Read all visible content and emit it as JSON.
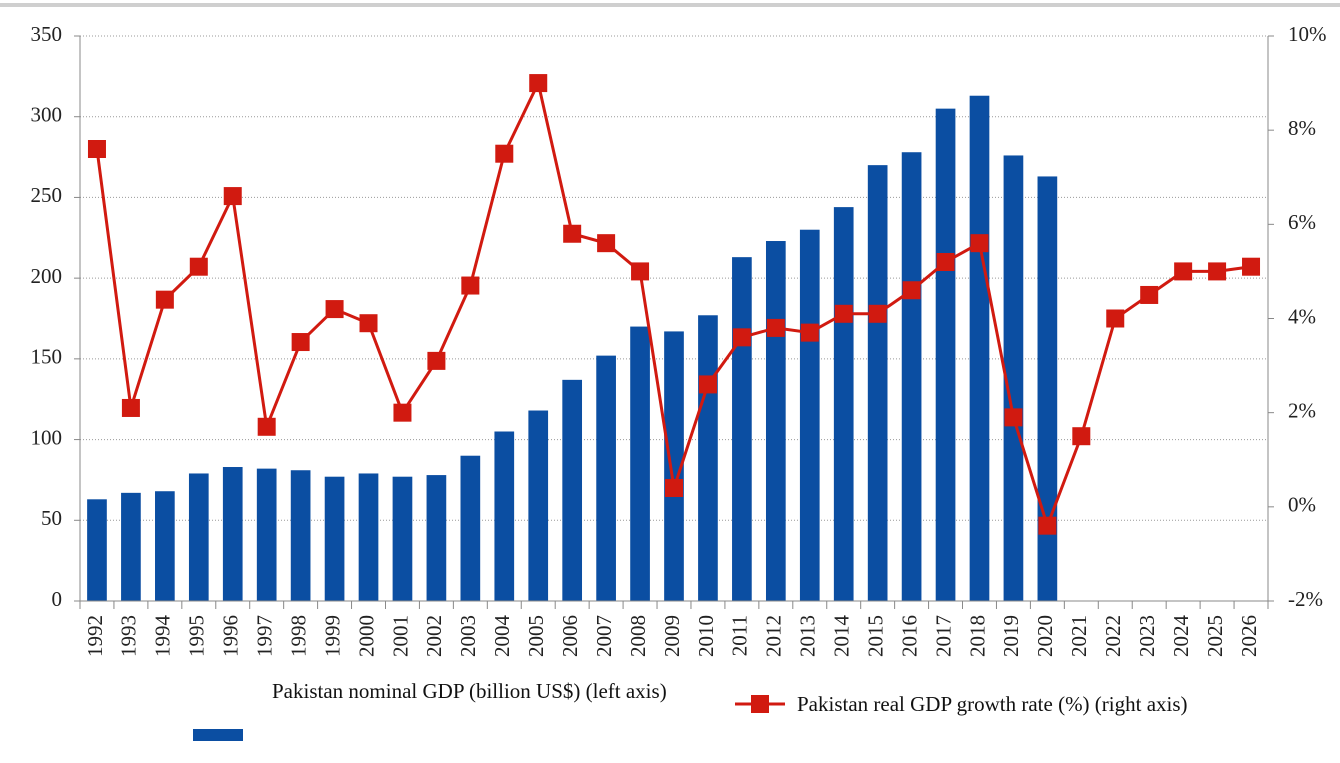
{
  "chart_data": {
    "type": "bar",
    "categories": [
      "1992",
      "1993",
      "1994",
      "1995",
      "1996",
      "1997",
      "1998",
      "1999",
      "2000",
      "2001",
      "2002",
      "2003",
      "2004",
      "2005",
      "2006",
      "2007",
      "2008",
      "2009",
      "2010",
      "2011",
      "2012",
      "2013",
      "2014",
      "2015",
      "2016",
      "2017",
      "2018",
      "2019",
      "2020",
      "2021",
      "2022",
      "2023",
      "2024",
      "2025",
      "2026"
    ],
    "series": [
      {
        "name": "Pakistan nominal GDP (billion US$) (left axis)",
        "type": "bar",
        "color": "#0b4ea2",
        "values": [
          63,
          67,
          68,
          79,
          83,
          82,
          81,
          77,
          79,
          77,
          78,
          90,
          105,
          118,
          137,
          152,
          170,
          167,
          177,
          213,
          223,
          230,
          244,
          270,
          278,
          305,
          313,
          276,
          263,
          null,
          null,
          null,
          null,
          null,
          null
        ]
      },
      {
        "name": "Pakistan real GDP growth rate (%) (right axis)",
        "type": "line",
        "axis": "y2",
        "color": "#d11a10",
        "values": [
          7.6,
          2.1,
          4.4,
          5.1,
          6.6,
          1.7,
          3.5,
          4.2,
          3.9,
          2.0,
          3.1,
          4.7,
          7.5,
          9.0,
          5.8,
          5.6,
          5.0,
          0.4,
          2.6,
          3.6,
          3.8,
          3.7,
          4.1,
          4.1,
          4.6,
          5.2,
          5.6,
          1.9,
          -0.4,
          1.5,
          4.0,
          4.5,
          5.0,
          5.0,
          5.1
        ]
      }
    ],
    "ylim": [
      0,
      350
    ],
    "yticks": [
      0,
      50,
      100,
      150,
      200,
      250,
      300,
      350
    ],
    "y2lim": [
      -2,
      10
    ],
    "y2ticks": [
      {
        "value": -2,
        "label": "-2%"
      },
      {
        "value": 0,
        "label": "0%"
      },
      {
        "value": 2,
        "label": "2%"
      },
      {
        "value": 4,
        "label": "4%"
      },
      {
        "value": 6,
        "label": "6%"
      },
      {
        "value": 8,
        "label": "8%"
      },
      {
        "value": 10,
        "label": "10%"
      }
    ],
    "grid": true
  }
}
